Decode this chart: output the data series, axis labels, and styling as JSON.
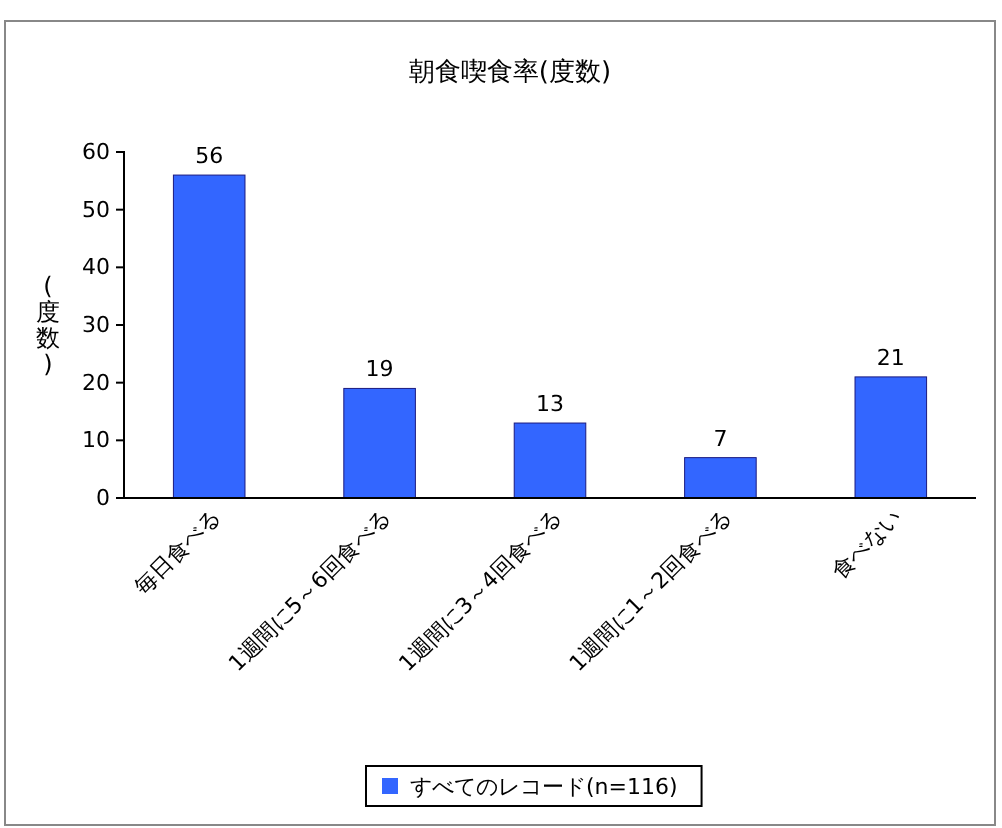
{
  "chart_data": {
    "type": "bar",
    "title": "朝食喫食率(度数)",
    "ylabel": "(度数)",
    "categories": [
      "毎日食べる",
      "1週間に5～6回食べる",
      "1週間に3～4回食べる",
      "1週間に1～2回食べる",
      "食べない"
    ],
    "series": [
      {
        "name": "すべてのレコード(n=116)",
        "color": "#3366ff",
        "values": [
          56,
          19,
          13,
          7,
          21
        ]
      }
    ],
    "ylim": [
      0,
      60
    ],
    "yticks": [
      0,
      10,
      20,
      30,
      40,
      50,
      60
    ],
    "data_labels": true,
    "legend": "bottom",
    "grid": false
  }
}
